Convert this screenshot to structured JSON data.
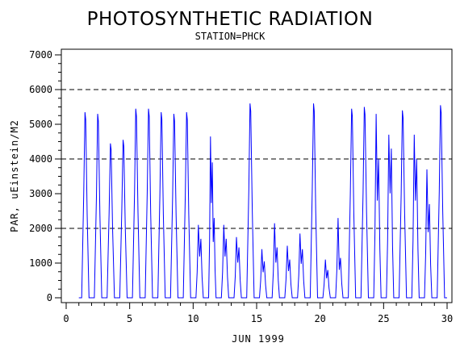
{
  "chart_data": {
    "type": "line",
    "title": "PHOTOSYNTHETIC RADIATION",
    "subtitle": "STATION=PHCK",
    "xlabel": "JUN 1999",
    "ylabel": "PAR, uEinstein/M2",
    "xlim": [
      0,
      30
    ],
    "ylim": [
      0,
      7000
    ],
    "x_ticks": [
      0,
      5,
      10,
      15,
      20,
      25,
      30
    ],
    "y_ticks": [
      0,
      1000,
      2000,
      3000,
      4000,
      5000,
      6000,
      7000
    ],
    "reference_lines": [
      2000,
      4000,
      6000
    ],
    "series_color": "#0000ff",
    "series": [
      {
        "peaks": [
          {
            "day": 1,
            "values": [
              5350
            ]
          },
          {
            "day": 2,
            "values": [
              5300
            ]
          },
          {
            "day": 3,
            "values": [
              4450
            ]
          },
          {
            "day": 4,
            "values": [
              4550
            ]
          },
          {
            "day": 5,
            "values": [
              5450
            ]
          },
          {
            "day": 6,
            "values": [
              5450
            ]
          },
          {
            "day": 7,
            "values": [
              5350
            ]
          },
          {
            "day": 8,
            "values": [
              5300
            ]
          },
          {
            "day": 9,
            "values": [
              5350
            ]
          },
          {
            "day": 10,
            "values": [
              2100,
              1700
            ]
          },
          {
            "day": 11,
            "values": [
              4650,
              3900,
              2300
            ]
          },
          {
            "day": 12,
            "values": [
              2100,
              1700
            ]
          },
          {
            "day": 13,
            "values": [
              1750,
              1450
            ]
          },
          {
            "day": 14,
            "values": [
              5600
            ]
          },
          {
            "day": 15,
            "values": [
              1400,
              1050
            ]
          },
          {
            "day": 16,
            "values": [
              2150,
              1450
            ]
          },
          {
            "day": 17,
            "values": [
              1500,
              1100
            ]
          },
          {
            "day": 18,
            "values": [
              1850,
              1400
            ]
          },
          {
            "day": 19,
            "values": [
              5600
            ]
          },
          {
            "day": 20,
            "values": [
              1100,
              800
            ]
          },
          {
            "day": 21,
            "values": [
              2300,
              1150
            ]
          },
          {
            "day": 22,
            "values": [
              5450
            ]
          },
          {
            "day": 23,
            "values": [
              5500
            ]
          },
          {
            "day": 24,
            "values": [
              5300,
              4000
            ]
          },
          {
            "day": 25,
            "values": [
              4700,
              4300
            ]
          },
          {
            "day": 26,
            "values": [
              5400
            ]
          },
          {
            "day": 27,
            "values": [
              4700,
              4000
            ]
          },
          {
            "day": 28,
            "values": [
              3700,
              2700
            ]
          },
          {
            "day": 29,
            "values": [
              5550
            ]
          }
        ]
      }
    ]
  }
}
